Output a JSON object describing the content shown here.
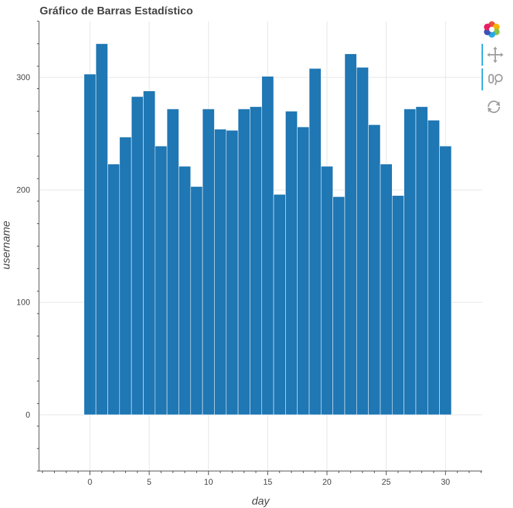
{
  "chart_data": {
    "type": "bar",
    "title": "Gráfico de Barras Estadístico",
    "xlabel": "day",
    "ylabel": "username",
    "x": [
      0,
      1,
      2,
      3,
      4,
      5,
      6,
      7,
      8,
      9,
      10,
      11,
      12,
      13,
      14,
      15,
      16,
      17,
      18,
      19,
      20,
      21,
      22,
      23,
      24,
      25,
      26,
      27,
      28,
      29,
      30
    ],
    "values": [
      303,
      330,
      223,
      247,
      283,
      288,
      239,
      272,
      221,
      203,
      272,
      254,
      253,
      272,
      274,
      301,
      196,
      270,
      256,
      308,
      221,
      194,
      321,
      309,
      258,
      223,
      195,
      272,
      274,
      262,
      239
    ],
    "xlim": [
      -4.3,
      33.1
    ],
    "ylim": [
      -50,
      350
    ],
    "xticks": [
      0,
      5,
      10,
      15,
      20,
      25,
      30
    ],
    "yticks": [
      0,
      100,
      200,
      300
    ],
    "bar_color": "#1f77b4",
    "grid": true
  },
  "toolbar": {
    "logo_icon": "bokeh-logo-icon",
    "tools": [
      "pan-icon",
      "wheel-zoom-icon",
      "reset-icon"
    ],
    "active_color": "#26aae1"
  }
}
